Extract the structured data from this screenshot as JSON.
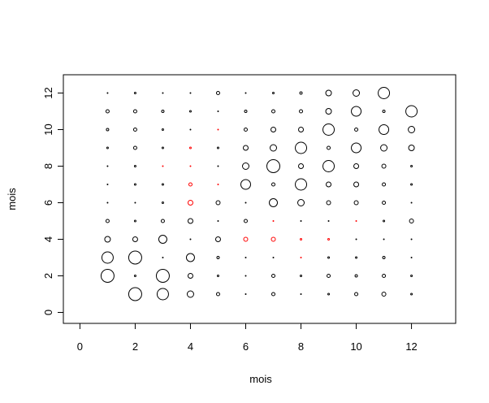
{
  "chart_data": {
    "type": "scatter",
    "xlabel": "mois",
    "ylabel": "mois",
    "xlim": [
      -0.6,
      13.6
    ],
    "ylim": [
      -0.6,
      13.0
    ],
    "xticks": [
      0,
      2,
      4,
      6,
      8,
      10,
      12
    ],
    "yticks": [
      0,
      2,
      4,
      6,
      8,
      10,
      12
    ],
    "x": [
      1,
      2,
      3,
      4,
      5,
      6,
      7,
      8,
      9,
      10,
      11,
      1,
      2,
      3,
      4,
      5,
      6,
      7,
      8,
      9,
      10,
      11,
      12,
      1,
      2,
      3,
      4,
      5,
      6,
      7,
      8,
      9,
      10,
      11,
      12,
      1,
      2,
      3,
      4,
      5,
      6,
      7,
      8,
      9,
      10,
      11,
      12,
      1,
      2,
      3,
      4,
      5,
      6,
      7,
      8,
      9,
      10,
      11,
      12,
      1,
      2,
      3,
      4,
      5,
      6,
      7,
      8,
      9,
      10,
      11,
      12,
      1,
      2,
      3,
      4,
      5,
      6,
      7,
      8,
      9,
      10,
      11,
      12,
      1,
      2,
      3,
      4,
      5,
      6,
      7,
      8,
      9,
      10,
      11,
      12,
      1,
      2,
      3,
      4,
      5,
      6,
      7,
      8,
      9,
      10,
      11,
      12,
      1,
      2,
      3,
      4,
      5,
      6,
      7,
      8,
      9,
      10,
      11,
      12,
      1,
      2,
      3,
      4,
      5,
      6,
      7,
      8,
      9,
      10,
      11,
      12,
      2,
      3,
      4,
      5,
      6,
      7,
      8,
      9,
      10,
      11,
      12
    ],
    "y": [
      12,
      12,
      12,
      12,
      12,
      12,
      12,
      12,
      12,
      12,
      12,
      11,
      11,
      11,
      11,
      11,
      11,
      11,
      11,
      11,
      11,
      11,
      11,
      10,
      10,
      10,
      10,
      10,
      10,
      10,
      10,
      10,
      10,
      10,
      10,
      9,
      9,
      9,
      9,
      9,
      9,
      9,
      9,
      9,
      9,
      9,
      9,
      8,
      8,
      8,
      8,
      8,
      8,
      8,
      8,
      8,
      8,
      8,
      8,
      7,
      7,
      7,
      7,
      7,
      7,
      7,
      7,
      7,
      7,
      7,
      7,
      6,
      6,
      6,
      6,
      6,
      6,
      6,
      6,
      6,
      6,
      6,
      6,
      5,
      5,
      5,
      5,
      5,
      5,
      5,
      5,
      5,
      5,
      5,
      5,
      4,
      4,
      4,
      4,
      4,
      4,
      4,
      4,
      4,
      4,
      4,
      4,
      3,
      3,
      3,
      3,
      3,
      3,
      3,
      3,
      3,
      3,
      3,
      3,
      2,
      2,
      2,
      2,
      2,
      2,
      2,
      2,
      2,
      2,
      2,
      2,
      1,
      1,
      1,
      1,
      1,
      1,
      1,
      1,
      1,
      1,
      1
    ],
    "sizes": [
      0.5,
      1,
      0.5,
      0.5,
      2,
      0.5,
      1,
      1.5,
      3.5,
      4,
      7,
      2,
      2,
      1.5,
      1,
      0.5,
      1.5,
      2,
      2,
      3.5,
      6,
      1.5,
      7,
      1.5,
      2,
      1,
      0.5,
      0.5,
      2,
      3,
      3,
      7,
      2,
      6,
      4,
      1,
      2,
      1,
      1,
      1,
      3,
      4,
      7,
      2,
      6,
      4,
      3.5,
      0.5,
      1,
      0.5,
      0.5,
      0.5,
      4,
      8,
      3,
      7,
      3,
      2.5,
      1,
      0.5,
      1,
      1,
      2,
      0.5,
      6,
      2,
      7,
      3,
      3,
      2,
      1,
      0.5,
      0.5,
      1,
      3,
      2.5,
      0.5,
      5,
      4,
      2.5,
      2.5,
      2,
      0.5,
      2,
      1,
      2,
      3,
      0.5,
      2,
      0.5,
      0.5,
      0.5,
      0.5,
      1,
      2.5,
      3.5,
      3,
      5,
      0.5,
      3,
      2.5,
      2.5,
      1,
      1,
      0.5,
      0.5,
      0.5,
      7,
      8,
      0.5,
      5,
      1.5,
      0.5,
      0.5,
      0.5,
      1,
      1,
      1.5,
      0.5,
      8,
      1,
      8,
      3,
      1,
      0.5,
      2,
      1,
      2,
      1.5,
      2,
      1,
      8,
      7,
      4,
      2,
      0.5,
      2,
      0.5,
      1,
      2,
      2.5,
      1
    ],
    "colors": [
      "black",
      "black",
      "black",
      "black",
      "black",
      "black",
      "black",
      "black",
      "black",
      "black",
      "black",
      "black",
      "black",
      "black",
      "black",
      "black",
      "black",
      "black",
      "black",
      "black",
      "black",
      "black",
      "black",
      "black",
      "black",
      "black",
      "black",
      "red",
      "black",
      "black",
      "black",
      "black",
      "black",
      "black",
      "black",
      "black",
      "black",
      "black",
      "red",
      "black",
      "black",
      "black",
      "black",
      "black",
      "black",
      "black",
      "black",
      "black",
      "black",
      "red",
      "red",
      "black",
      "black",
      "black",
      "black",
      "black",
      "black",
      "black",
      "black",
      "black",
      "black",
      "black",
      "red",
      "red",
      "black",
      "black",
      "black",
      "black",
      "black",
      "black",
      "black",
      "black",
      "black",
      "black",
      "red",
      "black",
      "black",
      "black",
      "black",
      "black",
      "black",
      "black",
      "black",
      "black",
      "black",
      "black",
      "black",
      "black",
      "black",
      "red",
      "black",
      "black",
      "red",
      "black",
      "black",
      "black",
      "black",
      "black",
      "black",
      "black",
      "red",
      "red",
      "red",
      "red",
      "black",
      "black",
      "black",
      "black",
      "black",
      "black",
      "black",
      "black",
      "black",
      "black",
      "red",
      "black",
      "black",
      "black",
      "black",
      "black",
      "black",
      "black",
      "black",
      "black",
      "black",
      "black",
      "black",
      "black",
      "black",
      "black",
      "black",
      "black",
      "black",
      "black",
      "black",
      "black",
      "black",
      "black",
      "black",
      "black",
      "black",
      "black"
    ]
  }
}
